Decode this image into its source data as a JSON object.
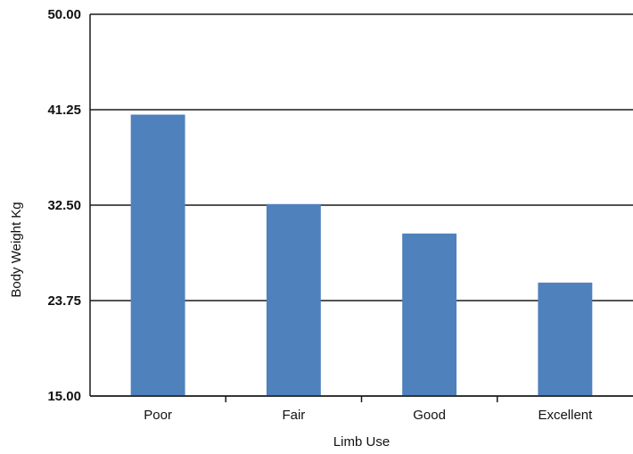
{
  "chart_data": {
    "type": "bar",
    "title": "",
    "xlabel": "Limb Use",
    "ylabel": "Body Weight  Kg",
    "categories": [
      "Poor",
      "Fair",
      "Good",
      "Excellent"
    ],
    "values": [
      40.8,
      32.6,
      29.9,
      25.4
    ],
    "ylim": [
      15,
      50
    ],
    "yticks": [
      "15.00",
      "23.75",
      "32.50",
      "41.25",
      "50.00"
    ],
    "grid": true,
    "legend": "none",
    "bar_color": "#4f81bd"
  }
}
